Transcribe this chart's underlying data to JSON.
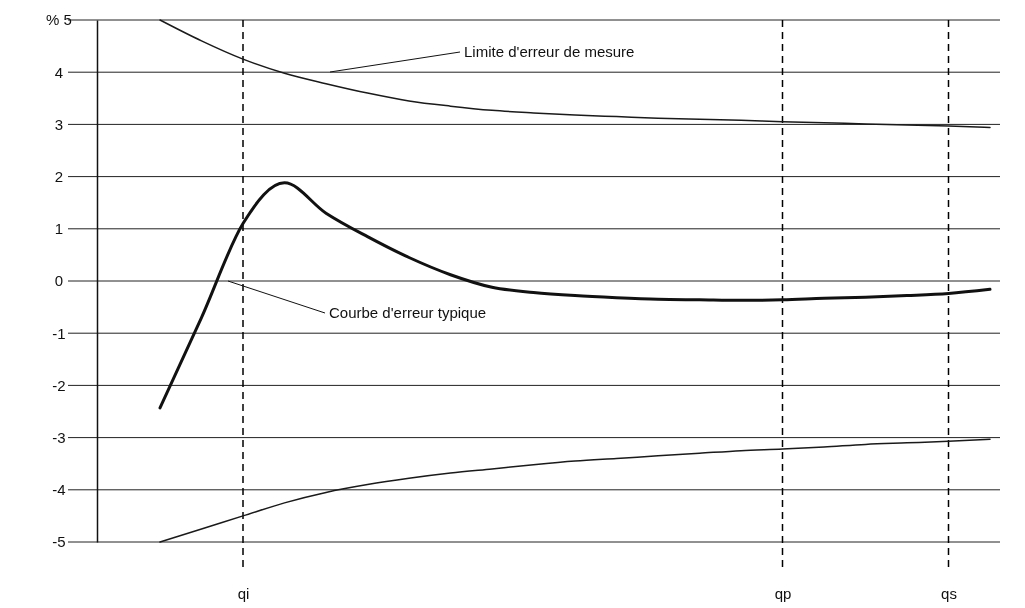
{
  "chart_data": {
    "type": "line",
    "categories": [
      null,
      null,
      "qi",
      null,
      null,
      null,
      null,
      null,
      null,
      null,
      null,
      null,
      null,
      null,
      null,
      "qp",
      null,
      null,
      null,
      "qs",
      null
    ],
    "ylim": [
      -5,
      5
    ],
    "yticks": [
      {
        "value": 5,
        "label": "% 5"
      },
      4,
      3,
      2,
      1,
      0,
      -1,
      -2,
      -3,
      -4,
      -5
    ],
    "grid": "y",
    "marker": "none",
    "line_style": "solid",
    "series": [
      {
        "color": "#1a1a1a",
        "values": [
          5.0,
          4.6,
          4.25,
          3.98,
          3.78,
          3.6,
          3.45,
          3.35,
          3.27,
          3.22,
          3.18,
          3.15,
          3.12,
          3.1,
          3.08,
          3.05,
          3.03,
          3.01,
          2.99,
          2.97,
          2.94
        ]
      },
      {
        "color": "#1a1a1a",
        "values": [
          -5.0,
          -4.75,
          -4.5,
          -4.25,
          -4.05,
          -3.9,
          -3.78,
          -3.68,
          -3.6,
          -3.52,
          -3.45,
          -3.4,
          -3.35,
          -3.3,
          -3.25,
          -3.22,
          -3.18,
          -3.13,
          -3.1,
          -3.07,
          -3.03
        ]
      },
      {
        "color": "#111111",
        "values": [
          -2.43,
          -0.7,
          1.1,
          1.88,
          1.3,
          0.85,
          0.45,
          0.12,
          -0.12,
          -0.22,
          -0.28,
          -0.32,
          -0.35,
          -0.36,
          -0.37,
          -0.36,
          -0.33,
          -0.31,
          -0.28,
          -0.24,
          -0.16
        ]
      }
    ],
    "ref_lines": [
      {
        "axis": "x",
        "value": "qi",
        "line_style": "dashed",
        "color": "#000000"
      },
      {
        "axis": "x",
        "value": "qp",
        "line_style": "dashed",
        "color": "#000000"
      },
      {
        "axis": "x",
        "value": "qs",
        "line_style": "dashed",
        "color": "#000000"
      }
    ],
    "annotations": [
      "Limite d'erreur de mesure",
      "Courbe d'erreur typique"
    ]
  }
}
